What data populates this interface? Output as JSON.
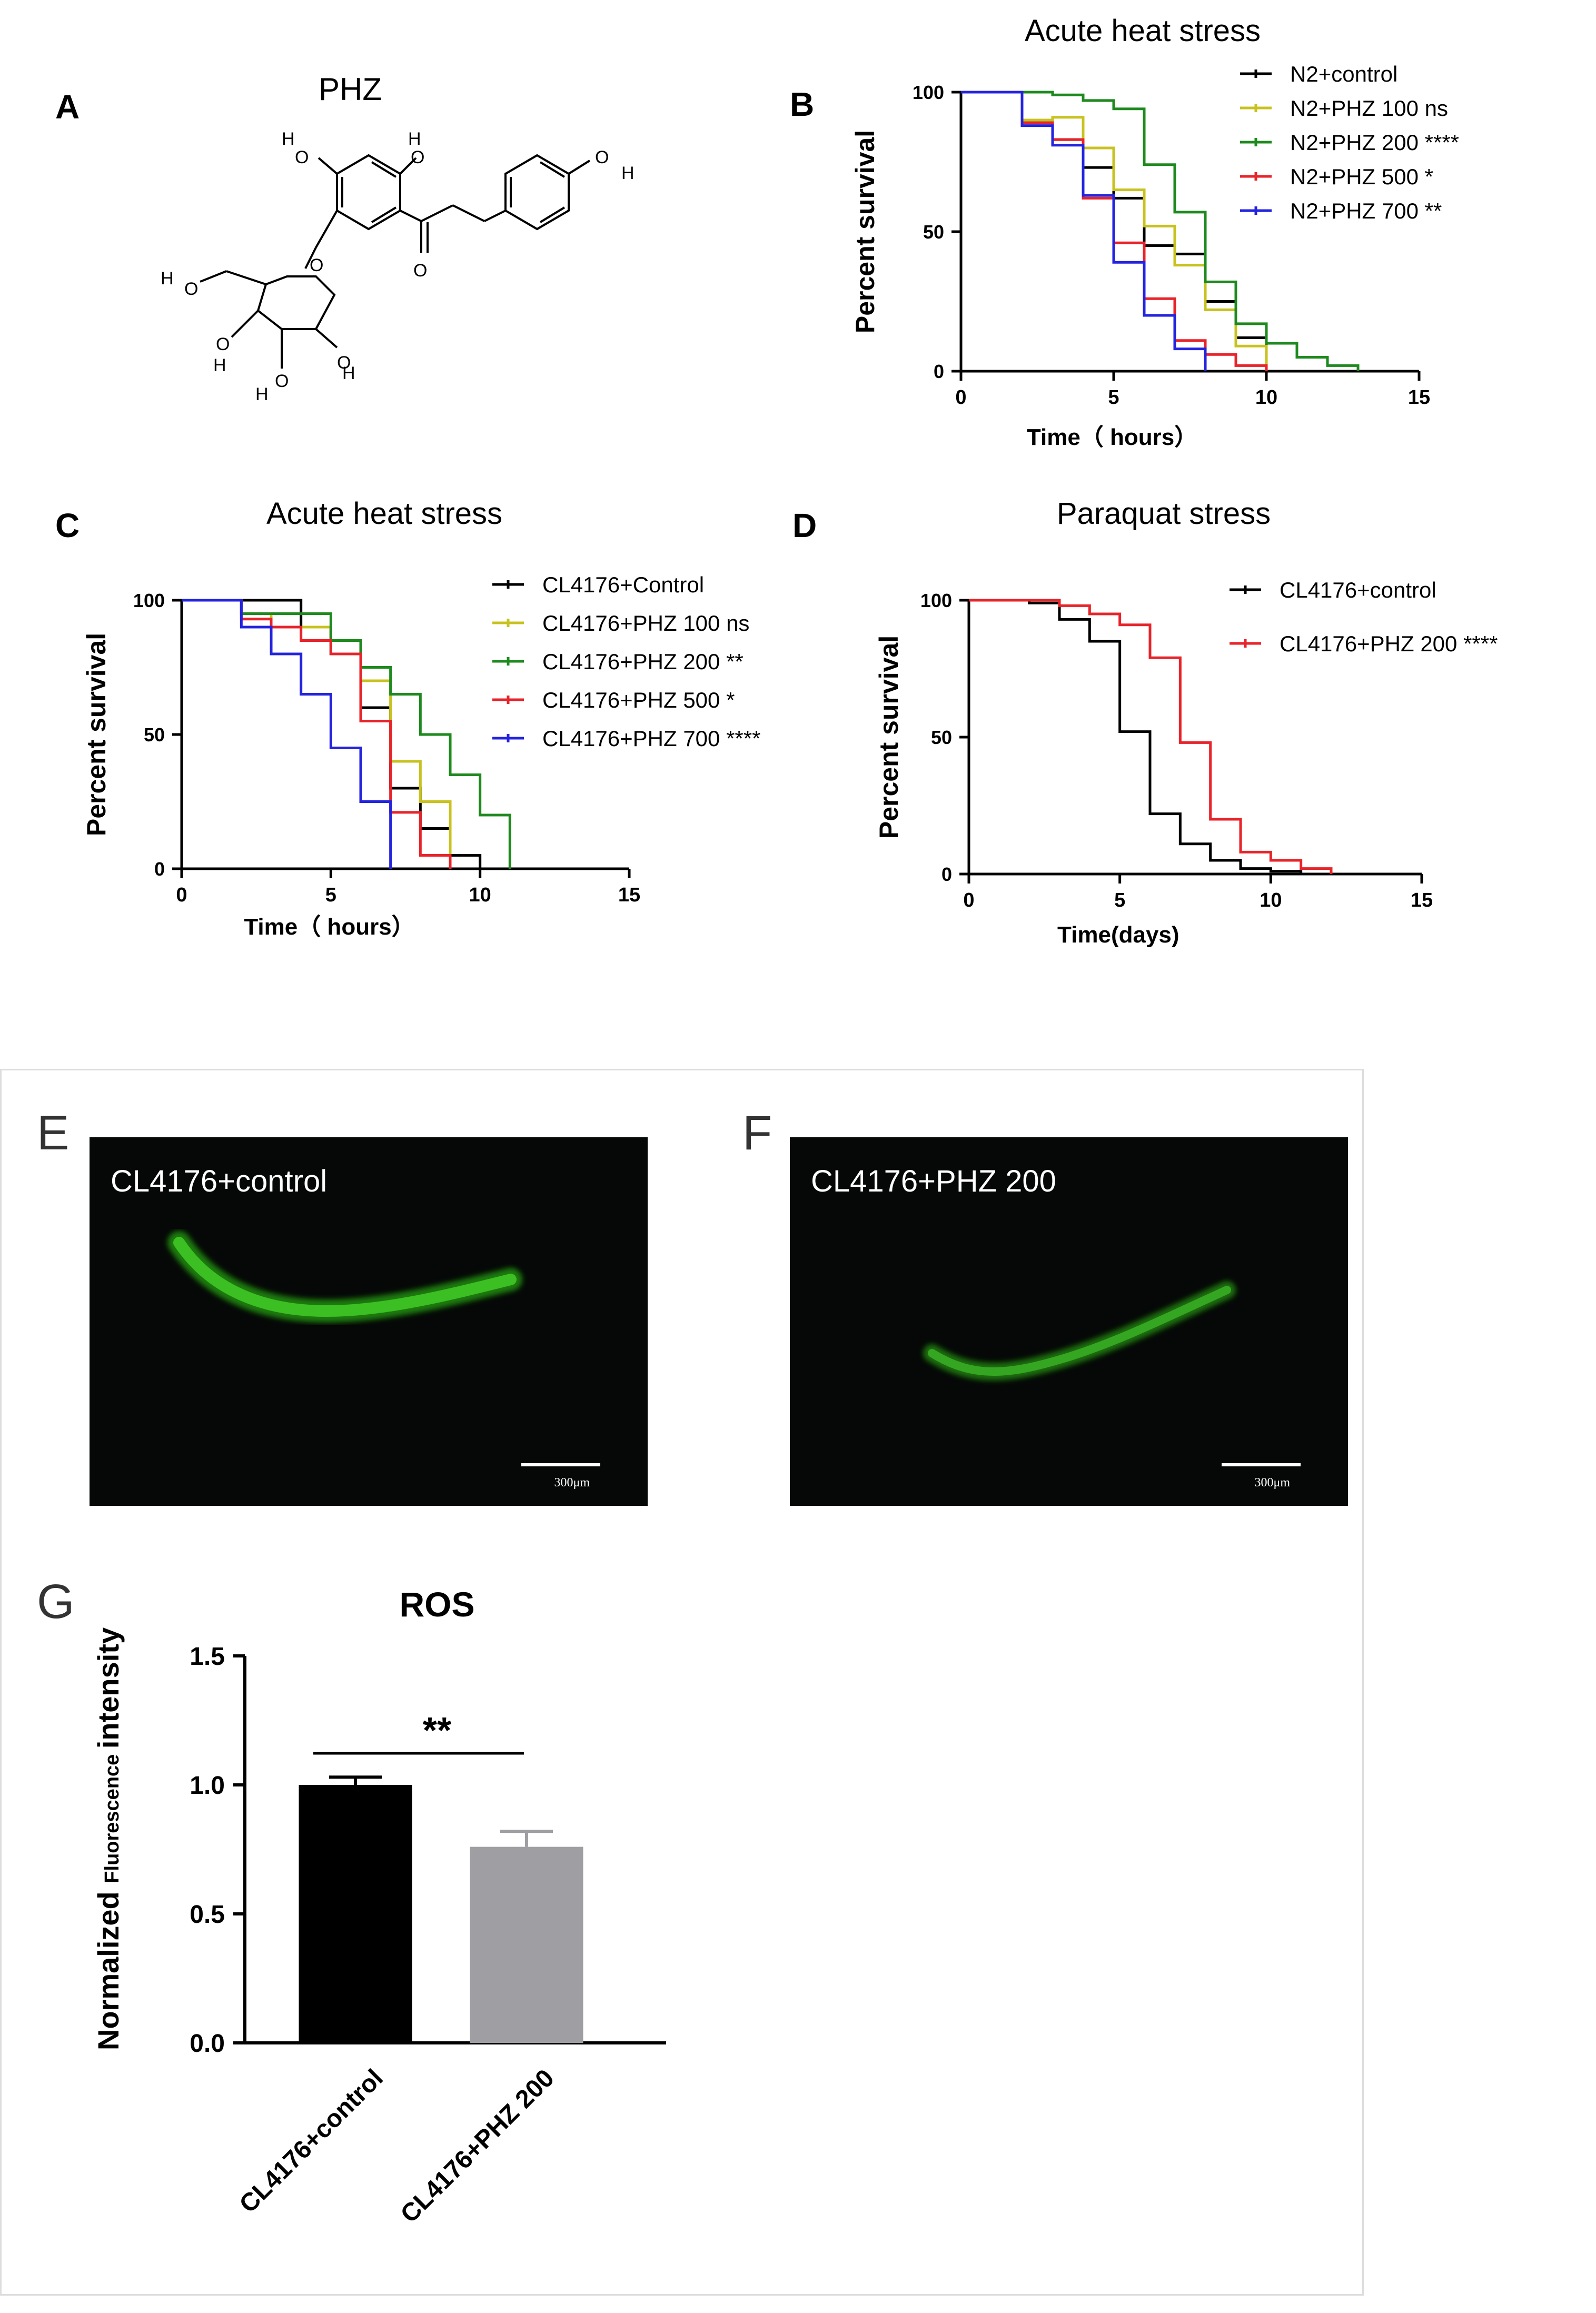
{
  "panels": {
    "a": {
      "letter": "A",
      "title": "PHZ"
    },
    "b": {
      "letter": "B"
    },
    "c": {
      "letter": "C"
    },
    "d": {
      "letter": "D"
    },
    "e": {
      "letter": "E",
      "label": "CL4176+control",
      "scale": "300μm"
    },
    "f": {
      "letter": "F",
      "label": "CL4176+PHZ 200",
      "scale": "300μm"
    },
    "g": {
      "letter": "G"
    }
  },
  "molecule_atoms": [
    "H",
    "O",
    "H",
    "O",
    "O",
    "H",
    "O",
    "O",
    "H",
    "O",
    "H",
    "O",
    "O",
    "H",
    "O",
    "H",
    "O",
    "H"
  ],
  "chart_data": [
    {
      "id": "B",
      "type": "line",
      "title": "Acute heat stress",
      "xlabel": "Time（ hours）",
      "ylabel": "Percent survival",
      "xlim": [
        0,
        15
      ],
      "ylim": [
        0,
        100
      ],
      "xticks": [
        0,
        5,
        10,
        15
      ],
      "yticks": [
        0,
        50,
        100
      ],
      "series": [
        {
          "name": "N2+control",
          "color": "#000000",
          "x": [
            0,
            2,
            3,
            4,
            5,
            6,
            7,
            8,
            9,
            10
          ],
          "y": [
            100,
            89,
            83,
            73,
            62,
            45,
            42,
            25,
            12,
            0
          ]
        },
        {
          "name": "N2+PHZ 100 ns",
          "color": "#c8c21e",
          "x": [
            0,
            2,
            3,
            4,
            5,
            6,
            7,
            8,
            9,
            10
          ],
          "y": [
            100,
            90,
            91,
            80,
            65,
            52,
            38,
            22,
            9,
            0
          ]
        },
        {
          "name": "N2+PHZ 200 ****",
          "color": "#1e8a1e",
          "x": [
            0,
            2,
            3,
            4,
            5,
            6,
            7,
            8,
            9,
            10,
            11,
            12,
            13
          ],
          "y": [
            100,
            100,
            99,
            97,
            94,
            74,
            57,
            32,
            17,
            10,
            5,
            2,
            0
          ]
        },
        {
          "name": "N2+PHZ 500 *",
          "color": "#e8232a",
          "x": [
            0,
            2,
            3,
            4,
            5,
            6,
            7,
            8,
            9,
            10
          ],
          "y": [
            100,
            89,
            83,
            62,
            46,
            26,
            11,
            6,
            2,
            0
          ]
        },
        {
          "name": "N2+PHZ 700 **",
          "color": "#2323e0",
          "x": [
            0,
            2,
            3,
            4,
            5,
            6,
            7,
            8
          ],
          "y": [
            100,
            88,
            81,
            63,
            39,
            20,
            8,
            0
          ]
        }
      ]
    },
    {
      "id": "C",
      "type": "line",
      "title": "Acute heat stress",
      "xlabel": "Time（ hours）",
      "ylabel": "Percent survival",
      "xlim": [
        0,
        15
      ],
      "ylim": [
        0,
        100
      ],
      "xticks": [
        0,
        5,
        10,
        15
      ],
      "yticks": [
        0,
        50,
        100
      ],
      "series": [
        {
          "name": "CL4176+Control",
          "color": "#000000",
          "x": [
            0,
            4,
            5,
            6,
            7,
            8,
            9,
            10
          ],
          "y": [
            100,
            90,
            80,
            60,
            30,
            15,
            5,
            0
          ]
        },
        {
          "name": "CL4176+PHZ 100 ns",
          "color": "#c8c21e",
          "x": [
            0,
            2,
            3,
            5,
            6,
            7,
            8,
            9
          ],
          "y": [
            100,
            95,
            90,
            85,
            70,
            40,
            25,
            0
          ]
        },
        {
          "name": "CL4176+PHZ 200 **",
          "color": "#1e8a1e",
          "x": [
            0,
            2,
            3,
            4,
            5,
            6,
            7,
            8,
            9,
            10,
            11
          ],
          "y": [
            100,
            95,
            95,
            95,
            85,
            75,
            65,
            50,
            35,
            20,
            0
          ]
        },
        {
          "name": "CL4176+PHZ 500 *",
          "color": "#e8232a",
          "x": [
            0,
            2,
            3,
            4,
            5,
            6,
            7,
            8,
            9
          ],
          "y": [
            100,
            93,
            90,
            85,
            80,
            55,
            21,
            5,
            0
          ]
        },
        {
          "name": "CL4176+PHZ 700 ****",
          "color": "#2323e0",
          "x": [
            0,
            2,
            3,
            4,
            5,
            6,
            7
          ],
          "y": [
            100,
            90,
            80,
            65,
            45,
            25,
            0
          ]
        }
      ]
    },
    {
      "id": "D",
      "type": "line",
      "title": "Paraquat stress",
      "xlabel": "Time(days)",
      "ylabel": "Percent survival",
      "xlim": [
        0,
        15
      ],
      "ylim": [
        0,
        100
      ],
      "xticks": [
        0,
        5,
        10,
        15
      ],
      "yticks": [
        0,
        50,
        100
      ],
      "series": [
        {
          "name": "CL4176+control",
          "color": "#000000",
          "x": [
            0,
            2,
            3,
            4,
            5,
            6,
            7,
            8,
            9,
            10,
            11
          ],
          "y": [
            100,
            99,
            93,
            85,
            52,
            22,
            11,
            5,
            2,
            1,
            0
          ]
        },
        {
          "name": "CL4176+PHZ 200 ****",
          "color": "#e8232a",
          "x": [
            0,
            2,
            3,
            4,
            5,
            6,
            7,
            8,
            9,
            10,
            11,
            12
          ],
          "y": [
            100,
            100,
            98,
            95,
            91,
            79,
            48,
            20,
            8,
            5,
            2,
            0
          ]
        }
      ]
    },
    {
      "id": "G",
      "type": "bar",
      "title": "ROS",
      "ylabel_main": "Normalized",
      "ylabel_small": "Fluorescence",
      "ylabel_end": "intensity",
      "categories": [
        "CL4176+control",
        "CL4176+PHZ 200"
      ],
      "values": [
        1.0,
        0.76
      ],
      "errors": [
        0.03,
        0.06
      ],
      "colors": [
        "#000000",
        "#9f9fa3"
      ],
      "ylim": [
        0,
        1.5
      ],
      "yticks": [
        "0.0",
        "0.5",
        "1.0",
        "1.5"
      ],
      "significance": "**"
    }
  ]
}
